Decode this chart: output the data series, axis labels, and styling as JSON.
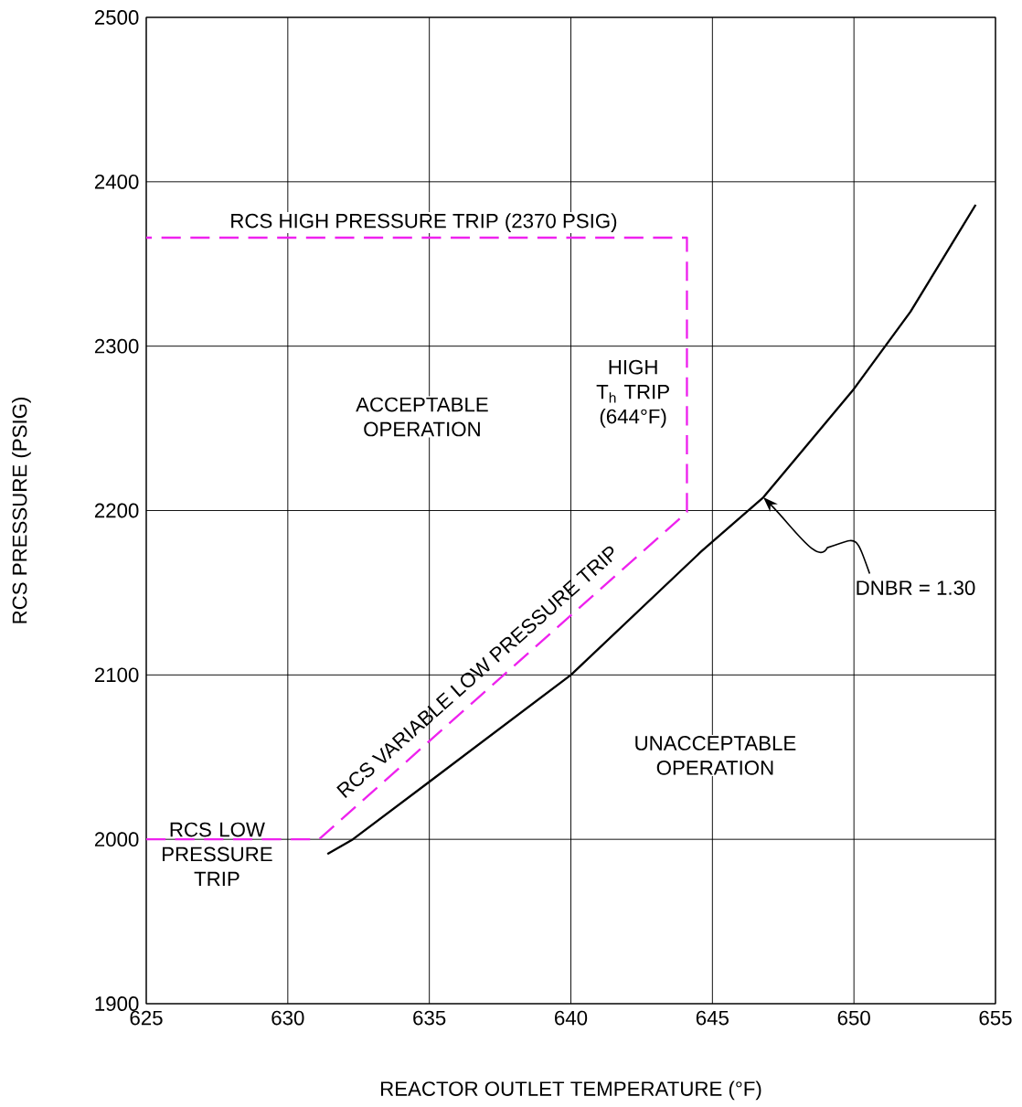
{
  "chart_data": {
    "type": "line",
    "xlabel": "REACTOR OUTLET TEMPERATURE (°F)",
    "ylabel": "RCS PRESSURE (PSIG)",
    "xlim": [
      625,
      655
    ],
    "ylim": [
      1900,
      2500
    ],
    "xticks": [
      625,
      630,
      635,
      640,
      645,
      650,
      655
    ],
    "yticks": [
      1900,
      2000,
      2100,
      2200,
      2300,
      2400,
      2500
    ],
    "grid": true,
    "marker": "none",
    "series": [
      {
        "color": "#000000",
        "line_style": "solid",
        "x": [
          631.4,
          632.3,
          635,
          640,
          644.6,
          646.8,
          650,
          652,
          654.3
        ],
        "values": [
          1991,
          2000,
          2035,
          2100,
          2175,
          2208,
          2274,
          2321,
          2386
        ]
      },
      {
        "color": "#ee22ee",
        "line_style": "dashed",
        "x": [
          625,
          631.1,
          644.1,
          644.1,
          625
        ],
        "values": [
          2000,
          2000,
          2199,
          2366,
          2366
        ]
      }
    ],
    "annotations": [
      {
        "text": "RCS HIGH PRESSURE TRIP (2370 PSIG)",
        "x": 634.8,
        "y": 2366
      },
      "ACCEPTABLE OPERATION",
      "HIGH T$_{h}$ TRIP (644°F)",
      "RCS VARIABLE LOW PRESSURE TRIP",
      "RCS LOW PRESSURE TRIP",
      "UNACCEPTABLE OPERATION",
      "DNBR = 1.30"
    ]
  }
}
